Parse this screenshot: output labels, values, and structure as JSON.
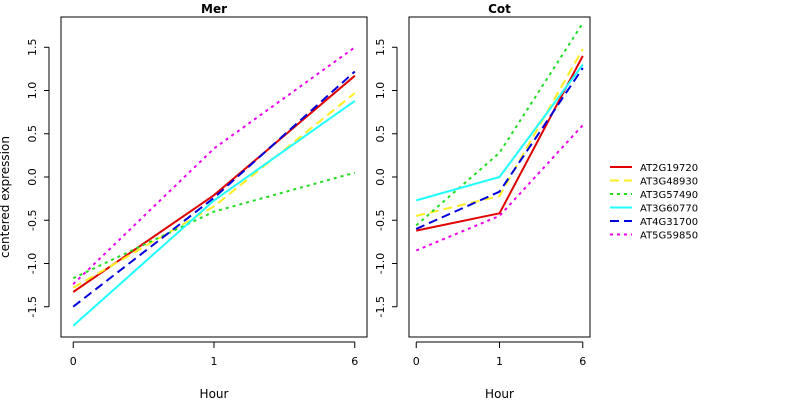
{
  "chart_data": {
    "type": "line",
    "ylabel": "centered expression",
    "colors": {
      "AT2G19720": "#e00000",
      "AT3G48930": "#ffee22",
      "AT3G57490": "#22dd22",
      "AT3G60770": "#22ffff",
      "AT4G31700": "#0000dd",
      "AT5G59850": "#ee00ee"
    },
    "line_styles": {
      "AT2G19720": "solid",
      "AT3G48930": "dashed",
      "AT3G57490": "dotted",
      "AT3G60770": "solid",
      "AT4G31700": "dashed",
      "AT5G59850": "dotted"
    },
    "legend": [
      "AT2G19720",
      "AT3G48930",
      "AT3G57490",
      "AT3G60770",
      "AT4G31700",
      "AT5G59850"
    ],
    "legend_position": "right",
    "panels": [
      {
        "title": "Mer",
        "xlabel": "Hour",
        "x": [
          "0",
          "1",
          "6"
        ],
        "ylim": [
          -1.85,
          1.85
        ],
        "yticks": [
          "-1.5",
          "-1.0",
          "-0.5",
          "0.0",
          "0.5",
          "1.0",
          "1.5"
        ],
        "series": [
          {
            "name": "AT2G19720",
            "values": [
              -1.33,
              -0.21,
              1.17
            ]
          },
          {
            "name": "AT3G48930",
            "values": [
              -1.28,
              -0.34,
              0.97
            ]
          },
          {
            "name": "AT3G57490",
            "values": [
              -1.17,
              -0.4,
              0.05
            ]
          },
          {
            "name": "AT3G60770",
            "values": [
              -1.72,
              -0.27,
              0.88
            ]
          },
          {
            "name": "AT4G31700",
            "values": [
              -1.5,
              -0.24,
              1.22
            ]
          },
          {
            "name": "AT5G59850",
            "values": [
              -1.24,
              0.33,
              1.5
            ]
          }
        ]
      },
      {
        "title": "Cot",
        "xlabel": "Hour",
        "x": [
          "0",
          "1",
          "6"
        ],
        "ylim": [
          -1.85,
          1.85
        ],
        "yticks": [
          "-1.5",
          "-1.0",
          "-0.5",
          "0.0",
          "0.5",
          "1.0",
          "1.5"
        ],
        "series": [
          {
            "name": "AT2G19720",
            "values": [
              -0.62,
              -0.42,
              1.4
            ]
          },
          {
            "name": "AT3G48930",
            "values": [
              -0.45,
              -0.22,
              1.48
            ]
          },
          {
            "name": "AT3G57490",
            "values": [
              -0.56,
              0.28,
              1.78
            ]
          },
          {
            "name": "AT3G60770",
            "values": [
              -0.27,
              0.0,
              1.3
            ]
          },
          {
            "name": "AT4G31700",
            "values": [
              -0.6,
              -0.17,
              1.26
            ]
          },
          {
            "name": "AT5G59850",
            "values": [
              -0.85,
              -0.45,
              0.6
            ]
          }
        ]
      }
    ]
  }
}
